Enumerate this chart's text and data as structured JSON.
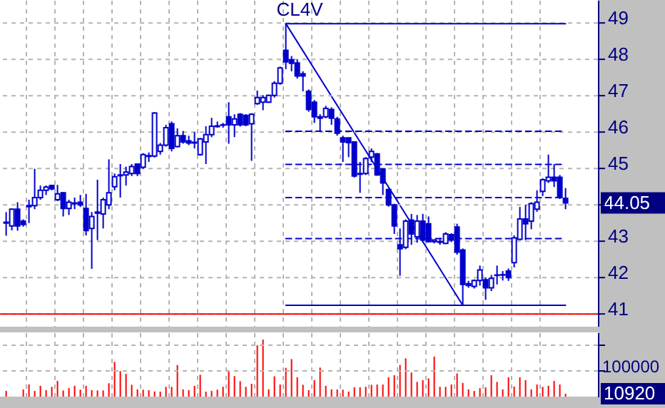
{
  "chart_data": [
    {
      "type": "candlestick",
      "annotations": [
        "CL4V",
        "44.05"
      ],
      "color": "#0000cc",
      "categories": [
        null,
        null,
        null,
        null,
        null,
        null,
        null,
        null,
        null,
        null,
        null,
        null,
        null,
        null,
        null,
        null,
        null,
        null,
        null,
        null,
        null,
        null,
        null,
        null,
        null,
        null,
        null,
        null,
        null,
        null,
        null,
        null,
        null,
        null,
        null,
        null,
        null,
        null,
        null,
        null,
        null,
        null,
        null,
        null,
        null,
        null,
        null,
        null,
        null,
        null,
        null,
        null,
        null,
        null,
        null,
        null,
        null,
        null,
        null,
        null,
        null,
        null,
        null,
        null,
        null,
        null,
        null,
        null,
        null,
        null,
        null,
        null,
        null,
        null,
        null,
        null,
        null,
        null,
        null,
        null,
        null,
        null,
        null,
        null,
        null,
        null,
        null,
        null,
        null,
        null,
        null,
        null,
        null,
        null,
        null,
        null,
        null,
        null,
        null
      ],
      "ohlc": [
        [
          43.52,
          43.8,
          43.15,
          43.5
        ],
        [
          43.42,
          43.9,
          43.3,
          43.88
        ],
        [
          43.88,
          44.07,
          43.29,
          43.42
        ],
        [
          43.55,
          43.6,
          43.4,
          43.46
        ],
        [
          43.95,
          44.14,
          43.5,
          43.98
        ],
        [
          43.98,
          44.99,
          43.88,
          44.2
        ],
        [
          44.2,
          44.53,
          44.14,
          44.4
        ],
        [
          44.4,
          44.53,
          44.27,
          44.49
        ],
        [
          44.53,
          44.55,
          44.4,
          44.44
        ],
        [
          44.14,
          44.55,
          44.1,
          44.3
        ],
        [
          44.33,
          44.35,
          43.68,
          43.9
        ],
        [
          43.9,
          44.14,
          43.72,
          44.07
        ],
        [
          44.03,
          44.2,
          43.88,
          44.05
        ],
        [
          44.07,
          44.27,
          43.94,
          44.0
        ],
        [
          43.9,
          44.3,
          43.16,
          43.29
        ],
        [
          43.35,
          43.8,
          42.24,
          43.68
        ],
        [
          43.77,
          44.69,
          43.03,
          43.8
        ],
        [
          43.75,
          44.2,
          43.35,
          44.14
        ],
        [
          44.0,
          45.25,
          43.88,
          44.33
        ],
        [
          44.5,
          44.86,
          44.4,
          44.77
        ],
        [
          44.8,
          45.12,
          44.2,
          44.82
        ],
        [
          44.82,
          45.05,
          44.53,
          44.9
        ],
        [
          44.86,
          45.12,
          44.79,
          45.05
        ],
        [
          45.12,
          45.14,
          44.79,
          44.86
        ],
        [
          45.03,
          45.42,
          44.99,
          45.38
        ],
        [
          45.33,
          45.44,
          45.18,
          45.35
        ],
        [
          45.34,
          46.55,
          45.3,
          46.52
        ],
        [
          45.47,
          45.7,
          45.38,
          45.64
        ],
        [
          45.64,
          46.2,
          45.6,
          46.12
        ],
        [
          46.23,
          46.29,
          45.47,
          45.55
        ],
        [
          45.6,
          46.1,
          45.58,
          45.9
        ],
        [
          45.9,
          46.03,
          45.68,
          45.73
        ],
        [
          45.76,
          45.9,
          45.64,
          45.7
        ],
        [
          45.72,
          46.0,
          45.55,
          45.7
        ],
        [
          45.38,
          45.84,
          45.35,
          45.81
        ],
        [
          45.73,
          46.16,
          45.12,
          45.93
        ],
        [
          45.93,
          46.39,
          45.86,
          46.16
        ],
        [
          46.15,
          46.29,
          46.12,
          46.17
        ],
        [
          46.19,
          46.25,
          46.12,
          46.2
        ],
        [
          46.42,
          46.82,
          45.68,
          46.2
        ],
        [
          46.2,
          46.49,
          45.86,
          46.36
        ],
        [
          46.49,
          46.52,
          46.15,
          46.2
        ],
        [
          46.46,
          46.49,
          46.16,
          46.2
        ],
        [
          46.23,
          46.52,
          45.21,
          46.49
        ],
        [
          46.78,
          47.14,
          46.75,
          46.95
        ],
        [
          46.82,
          47.01,
          46.6,
          46.95
        ],
        [
          46.82,
          47.03,
          46.8,
          47.01
        ],
        [
          47.01,
          47.4,
          46.95,
          47.34
        ],
        [
          47.34,
          47.8,
          47.3,
          47.76
        ],
        [
          48.25,
          48.98,
          47.73,
          47.93
        ],
        [
          47.99,
          48.09,
          47.67,
          47.89
        ],
        [
          47.9,
          47.99,
          47.47,
          47.54
        ],
        [
          47.6,
          47.67,
          47.12,
          47.54
        ],
        [
          47.12,
          47.17,
          46.56,
          46.62
        ],
        [
          46.82,
          46.88,
          46.25,
          46.42
        ],
        [
          46.42,
          46.49,
          46.03,
          46.38
        ],
        [
          46.42,
          46.72,
          46.38,
          46.65
        ],
        [
          46.62,
          46.68,
          46.2,
          46.38
        ],
        [
          46.36,
          46.42,
          45.9,
          45.97
        ],
        [
          45.84,
          45.9,
          45.18,
          45.73
        ],
        [
          45.84,
          45.84,
          45.31,
          45.71
        ],
        [
          45.73,
          45.75,
          44.75,
          44.79
        ],
        [
          44.86,
          45.18,
          44.33,
          44.84
        ],
        [
          44.86,
          45.31,
          44.82,
          45.27
        ],
        [
          45.31,
          45.55,
          45.18,
          45.47
        ],
        [
          45.4,
          45.42,
          44.8,
          44.82
        ],
        [
          44.99,
          45.0,
          44.27,
          44.6
        ],
        [
          44.42,
          44.45,
          43.95,
          44.0
        ],
        [
          44.0,
          44.03,
          43.2,
          43.42
        ],
        [
          42.9,
          43.35,
          42.05,
          42.79
        ],
        [
          42.83,
          43.6,
          42.78,
          43.55
        ],
        [
          43.58,
          43.75,
          42.9,
          43.2
        ],
        [
          43.12,
          43.72,
          42.96,
          43.55
        ],
        [
          43.55,
          43.75,
          42.96,
          43.03
        ],
        [
          43.48,
          43.68,
          42.96,
          42.99
        ],
        [
          42.99,
          43.05,
          42.94,
          43.03
        ],
        [
          42.97,
          43.09,
          42.9,
          42.99
        ],
        [
          42.94,
          43.25,
          42.92,
          43.2
        ],
        [
          43.18,
          43.22,
          42.98,
          43.03
        ],
        [
          43.39,
          43.48,
          42.63,
          42.7
        ],
        [
          42.76,
          42.8,
          41.24,
          41.81
        ],
        [
          41.83,
          41.91,
          41.72,
          41.78
        ],
        [
          41.76,
          41.95,
          41.7,
          41.92
        ],
        [
          41.92,
          42.33,
          41.78,
          42.21
        ],
        [
          41.94,
          42.0,
          41.39,
          41.72
        ],
        [
          41.72,
          42.07,
          41.63,
          41.98
        ],
        [
          42.06,
          42.33,
          41.81,
          42.07
        ],
        [
          42.07,
          42.18,
          41.92,
          42.08
        ],
        [
          42.18,
          42.25,
          41.91,
          42.0
        ],
        [
          42.41,
          43.16,
          42.28,
          43.09
        ],
        [
          43.05,
          43.94,
          43.03,
          43.61
        ],
        [
          43.61,
          44.0,
          43.03,
          43.48
        ],
        [
          43.55,
          44.07,
          43.33,
          44.03
        ],
        [
          43.88,
          44.4,
          43.81,
          44.07
        ],
        [
          44.37,
          44.73,
          44.24,
          44.69
        ],
        [
          44.66,
          45.38,
          44.6,
          44.76
        ],
        [
          44.76,
          45.12,
          44.49,
          44.66
        ],
        [
          44.76,
          44.82,
          44.16,
          44.2
        ],
        [
          44.18,
          44.46,
          43.88,
          44.05
        ]
      ],
      "series": [
        {
          "type": "line",
          "color": "#0000cc",
          "line_style": "solid",
          "values": [
            null,
            null,
            null,
            null,
            null,
            null,
            null,
            null,
            null,
            null,
            null,
            null,
            null,
            null,
            null,
            null,
            null,
            null,
            null,
            null,
            null,
            null,
            null,
            null,
            null,
            null,
            null,
            null,
            null,
            null,
            null,
            null,
            null,
            null,
            null,
            null,
            null,
            null,
            null,
            null,
            null,
            null,
            null,
            null,
            null,
            null,
            null,
            null,
            null,
            48.98,
            null,
            null,
            null,
            null,
            null,
            null,
            null,
            null,
            null,
            null,
            null,
            null,
            null,
            null,
            null,
            null,
            null,
            null,
            null,
            null,
            null,
            null,
            null,
            null,
            null,
            null,
            null,
            null,
            null,
            null,
            41.24,
            null,
            null,
            null,
            null,
            null,
            null,
            null,
            null,
            null,
            null,
            null,
            null,
            null,
            null,
            null,
            null,
            null,
            null
          ]
        },
        {
          "type": "line",
          "color": "#0000cc",
          "line_style": "solid",
          "values": [
            null,
            null,
            null,
            null,
            null,
            null,
            null,
            null,
            null,
            null,
            null,
            null,
            null,
            null,
            null,
            null,
            null,
            null,
            null,
            null,
            null,
            null,
            null,
            null,
            null,
            null,
            null,
            null,
            null,
            null,
            null,
            null,
            null,
            null,
            null,
            null,
            null,
            null,
            null,
            null,
            null,
            null,
            null,
            null,
            null,
            null,
            null,
            null,
            null,
            48.98,
            48.98,
            48.98,
            48.98,
            48.98,
            48.98,
            48.98,
            48.98,
            48.98,
            48.98,
            48.98,
            48.98,
            48.98,
            48.98,
            48.98,
            48.98,
            48.98,
            48.98,
            48.98,
            48.98,
            48.98,
            48.98,
            48.98,
            48.98,
            48.98,
            48.98,
            48.98,
            48.98,
            48.98,
            48.98,
            48.98,
            48.98,
            48.98,
            48.98,
            48.98,
            48.98,
            48.98,
            48.98,
            48.98,
            48.98,
            48.98,
            48.98,
            48.98,
            48.98,
            48.98,
            48.98,
            48.98,
            48.98,
            48.98,
            48.98
          ]
        },
        {
          "type": "line",
          "color": "#0000cc",
          "line_style": "dashed",
          "values": [
            null,
            null,
            null,
            null,
            null,
            null,
            null,
            null,
            null,
            null,
            null,
            null,
            null,
            null,
            null,
            null,
            null,
            null,
            null,
            null,
            null,
            null,
            null,
            null,
            null,
            null,
            null,
            null,
            null,
            null,
            null,
            null,
            null,
            null,
            null,
            null,
            null,
            null,
            null,
            null,
            null,
            null,
            null,
            null,
            null,
            null,
            null,
            null,
            null,
            46.02,
            46.02,
            46.02,
            46.02,
            46.02,
            46.02,
            46.02,
            46.02,
            46.02,
            46.02,
            46.02,
            46.02,
            46.02,
            46.02,
            46.02,
            46.02,
            46.02,
            46.02,
            46.02,
            46.02,
            46.02,
            46.02,
            46.02,
            46.02,
            46.02,
            46.02,
            46.02,
            46.02,
            46.02,
            46.02,
            46.02,
            46.02,
            46.02,
            46.02,
            46.02,
            46.02,
            46.02,
            46.02,
            46.02,
            46.02,
            46.02,
            46.02,
            46.02,
            46.02,
            46.02,
            46.02,
            46.02,
            46.02,
            46.02,
            46.02
          ]
        },
        {
          "type": "line",
          "color": "#0000cc",
          "line_style": "dashed",
          "values": [
            null,
            null,
            null,
            null,
            null,
            null,
            null,
            null,
            null,
            null,
            null,
            null,
            null,
            null,
            null,
            null,
            null,
            null,
            null,
            null,
            null,
            null,
            null,
            null,
            null,
            null,
            null,
            null,
            null,
            null,
            null,
            null,
            null,
            null,
            null,
            null,
            null,
            null,
            null,
            null,
            null,
            null,
            null,
            null,
            null,
            null,
            null,
            null,
            null,
            45.11,
            45.11,
            45.11,
            45.11,
            45.11,
            45.11,
            45.11,
            45.11,
            45.11,
            45.11,
            45.11,
            45.11,
            45.11,
            45.11,
            45.11,
            45.11,
            45.11,
            45.11,
            45.11,
            45.11,
            45.11,
            45.11,
            45.11,
            45.11,
            45.11,
            45.11,
            45.11,
            45.11,
            45.11,
            45.11,
            45.11,
            45.11,
            45.11,
            45.11,
            45.11,
            45.11,
            45.11,
            45.11,
            45.11,
            45.11,
            45.11,
            45.11,
            45.11,
            45.11,
            45.11,
            45.11,
            45.11,
            45.11,
            45.11,
            45.11
          ]
        },
        {
          "type": "line",
          "color": "#0000cc",
          "line_style": "dashed",
          "values": [
            null,
            null,
            null,
            null,
            null,
            null,
            null,
            null,
            null,
            null,
            null,
            null,
            null,
            null,
            null,
            null,
            null,
            null,
            null,
            null,
            null,
            null,
            null,
            null,
            null,
            null,
            null,
            null,
            null,
            null,
            null,
            null,
            null,
            null,
            null,
            null,
            null,
            null,
            null,
            null,
            null,
            null,
            null,
            null,
            null,
            null,
            null,
            null,
            null,
            44.2,
            44.2,
            44.2,
            44.2,
            44.2,
            44.2,
            44.2,
            44.2,
            44.2,
            44.2,
            44.2,
            44.2,
            44.2,
            44.2,
            44.2,
            44.2,
            44.2,
            44.2,
            44.2,
            44.2,
            44.2,
            44.2,
            44.2,
            44.2,
            44.2,
            44.2,
            44.2,
            44.2,
            44.2,
            44.2,
            44.2,
            44.2,
            44.2,
            44.2,
            44.2,
            44.2,
            44.2,
            44.2,
            44.2,
            44.2,
            44.2,
            44.2,
            44.2,
            44.2,
            44.2,
            44.2,
            44.2,
            44.2,
            44.2,
            44.2
          ]
        },
        {
          "type": "line",
          "color": "#0000cc",
          "line_style": "dashed",
          "values": [
            null,
            null,
            null,
            null,
            null,
            null,
            null,
            null,
            null,
            null,
            null,
            null,
            null,
            null,
            null,
            null,
            null,
            null,
            null,
            null,
            null,
            null,
            null,
            null,
            null,
            null,
            null,
            null,
            null,
            null,
            null,
            null,
            null,
            null,
            null,
            null,
            null,
            null,
            null,
            null,
            null,
            null,
            null,
            null,
            null,
            null,
            null,
            null,
            null,
            43.07,
            43.07,
            43.07,
            43.07,
            43.07,
            43.07,
            43.07,
            43.07,
            43.07,
            43.07,
            43.07,
            43.07,
            43.07,
            43.07,
            43.07,
            43.07,
            43.07,
            43.07,
            43.07,
            43.07,
            43.07,
            43.07,
            43.07,
            43.07,
            43.07,
            43.07,
            43.07,
            43.07,
            43.07,
            43.07,
            43.07,
            43.07,
            43.07,
            43.07,
            43.07,
            43.07,
            43.07,
            43.07,
            43.07,
            43.07,
            43.07,
            43.07,
            43.07,
            43.07,
            43.07,
            43.07,
            43.07,
            43.07,
            43.07,
            43.07
          ]
        },
        {
          "type": "line",
          "color": "#0000cc",
          "line_style": "solid",
          "values": [
            null,
            null,
            null,
            null,
            null,
            null,
            null,
            null,
            null,
            null,
            null,
            null,
            null,
            null,
            null,
            null,
            null,
            null,
            null,
            null,
            null,
            null,
            null,
            null,
            null,
            null,
            null,
            null,
            null,
            null,
            null,
            null,
            null,
            null,
            null,
            null,
            null,
            null,
            null,
            null,
            null,
            null,
            null,
            null,
            null,
            null,
            null,
            null,
            null,
            41.24,
            41.24,
            41.24,
            41.24,
            41.24,
            41.24,
            41.24,
            41.24,
            41.24,
            41.24,
            41.24,
            41.24,
            41.24,
            41.24,
            41.24,
            41.24,
            41.24,
            41.24,
            41.24,
            41.24,
            41.24,
            41.24,
            41.24,
            41.24,
            41.24,
            41.24,
            41.24,
            41.24,
            41.24,
            41.24,
            41.24,
            41.24,
            41.24,
            41.24,
            41.24,
            41.24,
            41.24,
            41.24,
            41.24,
            41.24,
            41.24,
            41.24,
            41.24,
            41.24,
            41.24,
            41.24,
            41.24,
            41.24,
            41.24,
            41.24
          ]
        }
      ],
      "ref_lines": [
        {
          "axis": "y",
          "value": 41,
          "color": "#ff0000"
        }
      ],
      "ylim": [
        40.65,
        49.63
      ],
      "yticks": [
        41,
        42,
        43,
        {
          "value": 44,
          "label": null
        },
        45,
        46,
        47,
        48,
        49
      ],
      "grid": true,
      "tick_labels": "y"
    },
    {
      "type": "bar",
      "color": "#ff0000",
      "annotations": [
        "10920"
      ],
      "categories": [
        null,
        null,
        null,
        null,
        null,
        null,
        null,
        null,
        null,
        null,
        null,
        null,
        null,
        null,
        null,
        null,
        null,
        null,
        null,
        null,
        null,
        null,
        null,
        null,
        null,
        null,
        null,
        null,
        null,
        null,
        null,
        null,
        null,
        null,
        null,
        null,
        null,
        null,
        null,
        null,
        null,
        null,
        null,
        null,
        null,
        null,
        null,
        null,
        null,
        null,
        null,
        null,
        null,
        null,
        null,
        null,
        null,
        null,
        null,
        null,
        null,
        null,
        null,
        null,
        null,
        null,
        null,
        null,
        null,
        null,
        null,
        null,
        null,
        null,
        null,
        null,
        null,
        null,
        null,
        null,
        null,
        null,
        null,
        null,
        null,
        null,
        null,
        null,
        null,
        null,
        null,
        null,
        null,
        null,
        null,
        null,
        null,
        null,
        null
      ],
      "values": [
        22000,
        null,
        null,
        28000,
        47000,
        22000,
        42000,
        25000,
        38000,
        61000,
        24000,
        33000,
        42000,
        27000,
        42000,
        25000,
        24000,
        24000,
        52000,
        135000,
        99000,
        88000,
        46000,
        28000,
        27000,
        25000,
        20000,
        19000,
        38000,
        38000,
        123000,
        28000,
        25000,
        42000,
        85000,
        19000,
        22000,
        27000,
        38000,
        99000,
        80000,
        60000,
        38000,
        50000,
        200000,
        222000,
        28000,
        79000,
        47000,
        112000,
        146000,
        75000,
        46000,
        25000,
        64000,
        113000,
        42000,
        28000,
        28000,
        27000,
        19000,
        36000,
        36000,
        38000,
        46000,
        47000,
        47000,
        75000,
        83000,
        123000,
        149000,
        94000,
        57000,
        64000,
        71000,
        156000,
        38000,
        38000,
        47000,
        90000,
        53000,
        28000,
        22000,
        33000,
        36000,
        83000,
        57000,
        28000,
        75000,
        39000,
        75000,
        64000,
        28000,
        47000,
        38000,
        42000,
        61000,
        47000,
        10920
      ],
      "ylim": [
        0,
        250000
      ],
      "yticks": [
        100000,
        {
          "value": 200000,
          "label": null
        }
      ],
      "grid": true,
      "tick_labels": "y"
    }
  ]
}
